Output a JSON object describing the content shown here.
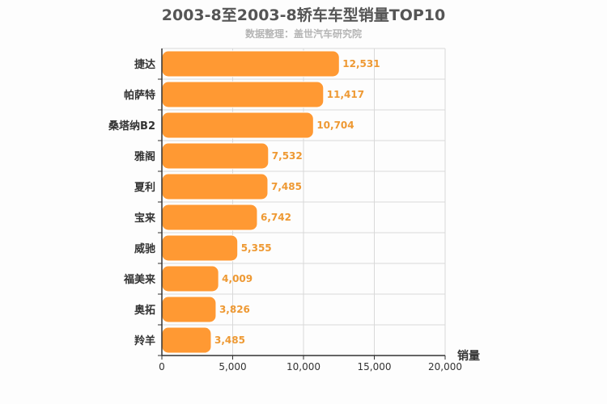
{
  "chart_data": {
    "type": "bar",
    "orientation": "horizontal",
    "title": "2003-8至2003-8轿车车型销量TOP10",
    "subtitle": "数据整理：盖世汽车研究院",
    "xlabel": "销量",
    "ylabel": "",
    "categories": [
      "捷达",
      "帕萨特",
      "桑塔纳B2",
      "雅阁",
      "夏利",
      "宝来",
      "威驰",
      "福美来",
      "奥拓",
      "羚羊"
    ],
    "values": [
      12531,
      11417,
      10704,
      7532,
      7485,
      6742,
      5355,
      4009,
      3826,
      3485
    ],
    "value_labels": [
      "12,531",
      "11,417",
      "10,704",
      "7,532",
      "7,485",
      "6,742",
      "5,355",
      "4,009",
      "3,826",
      "3,485"
    ],
    "xlim": [
      0,
      20000
    ],
    "xticks": [
      0,
      5000,
      10000,
      15000,
      20000
    ],
    "xtick_labels": [
      "0",
      "5,000",
      "10,000",
      "15,000",
      "20,000"
    ],
    "grid": true,
    "legend": "none",
    "colors": {
      "bar": "#ff9933",
      "bar_edge": "#ffffff",
      "data_label": "#ee9933",
      "grid": "#d9d9d9",
      "axis": "#333333",
      "title": "#555555",
      "subtitle": "#b5b5b5"
    }
  }
}
